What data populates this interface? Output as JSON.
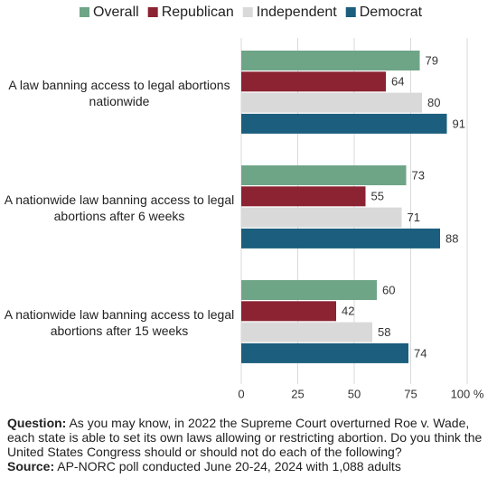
{
  "chart_data": {
    "type": "hbar",
    "categories": [
      "A law banning access to legal abortions nationwide",
      "A nationwide law banning access to legal abortions after 6 weeks",
      "A nationwide law banning access to legal abortions after 15 weeks"
    ],
    "series": [
      {
        "name": "Overall",
        "color": "#6fa587",
        "values": [
          79,
          73,
          60
        ]
      },
      {
        "name": "Republican",
        "color": "#8b2332",
        "values": [
          64,
          55,
          42
        ]
      },
      {
        "name": "Independent",
        "color": "#d9d9d9",
        "values": [
          80,
          71,
          58
        ]
      },
      {
        "name": "Democrat",
        "color": "#1b5e7e",
        "values": [
          91,
          88,
          74
        ]
      }
    ],
    "xlim": [
      0,
      100
    ],
    "xticks": [
      0,
      25,
      50,
      75,
      {
        "value": 100,
        "label": "100 %"
      }
    ],
    "grid": true,
    "legend": "top",
    "note_label": "Question:",
    "note": "As you may know, in 2022 the Supreme Court overturned Roe v. Wade, each state is able to set its own laws allowing or restricting abortion. Do you think the United States Congress should or should not do each of the following?",
    "source_label": "Source:",
    "source": "AP-NORC poll conducted June 20-24, 2024 with 1,088 adults"
  }
}
